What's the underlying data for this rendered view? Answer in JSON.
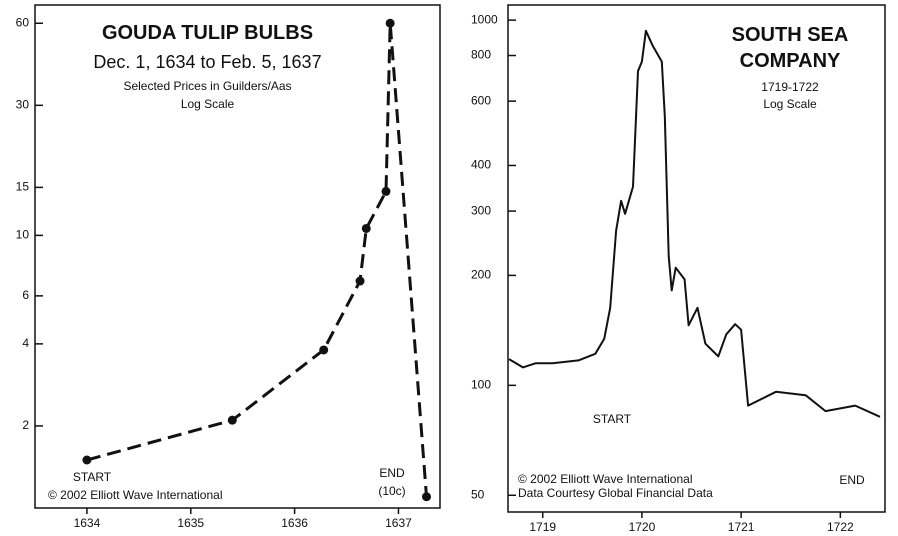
{
  "chart_data": [
    {
      "type": "line",
      "title": "GOUDA TULIP BULBS",
      "subtitle": "Dec. 1, 1634 to Feb. 5, 1637",
      "notes": [
        "Selected Prices in Guilders/Aas",
        "Log Scale"
      ],
      "x": [
        1634.0,
        1635.4,
        1636.28,
        1636.63,
        1636.69,
        1636.88,
        1636.92,
        1637.27
      ],
      "values": [
        1.5,
        2.1,
        3.8,
        6.8,
        10.6,
        14.5,
        60,
        1.1
      ],
      "color": "#111111",
      "dashed": true,
      "markers": true,
      "log_scale": true,
      "xlim": [
        1633.5,
        1637.4
      ],
      "xticks": [
        1634,
        1635,
        1636,
        1637
      ],
      "ylim": [
        1,
        70
      ],
      "yticks": [
        2,
        4,
        6,
        10,
        15,
        30,
        60
      ],
      "annotations": [
        "START",
        "END",
        "(10c)",
        "© 2002  Elliott Wave International"
      ]
    },
    {
      "type": "line",
      "title": "SOUTH SEA COMPANY",
      "subtitle": "1719-1722",
      "notes": [
        "Log Scale"
      ],
      "x": [
        1718.66,
        1718.8,
        1718.93,
        1719.1,
        1719.36,
        1719.53,
        1719.62,
        1719.68,
        1719.74,
        1719.79,
        1719.83,
        1719.91,
        1719.96,
        1720.0,
        1720.04,
        1720.11,
        1720.2,
        1720.23,
        1720.27,
        1720.3,
        1720.34,
        1720.43,
        1720.47,
        1720.56,
        1720.64,
        1720.77,
        1720.85,
        1720.94,
        1721.0,
        1721.07,
        1721.35,
        1721.65,
        1721.85,
        1722.15,
        1722.4
      ],
      "values": [
        118,
        112,
        115,
        115,
        117,
        122,
        134,
        163,
        265,
        320,
        295,
        350,
        725,
        770,
        935,
        850,
        770,
        546,
        226,
        182,
        210,
        195,
        146,
        163,
        130,
        120,
        138,
        147,
        142,
        88,
        96,
        94,
        85,
        88,
        82
      ],
      "color": "#111111",
      "dashed": false,
      "markers": false,
      "log_scale": true,
      "xlim": [
        1718.65,
        1722.45
      ],
      "xticks": [
        1719,
        1720,
        1721,
        1722
      ],
      "ylim": [
        45,
        1100
      ],
      "yticks": [
        50,
        100,
        200,
        300,
        400,
        600,
        800,
        1000
      ],
      "annotations": [
        "START",
        "END",
        "© 2002  Elliott Wave International",
        "Data Courtesy Global Financial Data"
      ]
    }
  ]
}
